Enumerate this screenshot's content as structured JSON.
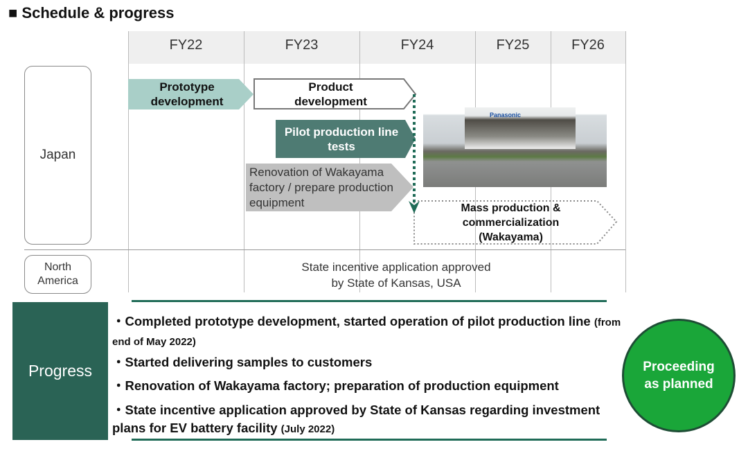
{
  "title": "Schedule & progress",
  "years": [
    "FY22",
    "FY23",
    "FY24",
    "FY25",
    "FY26"
  ],
  "rows": {
    "japan": "Japan",
    "north_america": "North\nAmerica"
  },
  "tasks": {
    "prototype": "Prototype development",
    "product": "Product development",
    "pilot": "Pilot production line tests",
    "renovation": "Renovation of Wakayama factory / prepare production equipment",
    "mass": "Mass production & commercialization (Wakayama)"
  },
  "na_text": "State incentive application approved\nby State of Kansas, USA",
  "photo_sign": "Panasonic",
  "progress": {
    "label": "Progress",
    "items": [
      {
        "text": "Completed prototype development, started operation of pilot production line",
        "note": "(from end of May 2022)"
      },
      {
        "text": "Started delivering samples to customers",
        "note": ""
      },
      {
        "text": "Renovation of Wakayama factory; preparation of production equipment",
        "note": ""
      },
      {
        "text": "State incentive application approved by State of Kansas regarding investment plans for EV battery facility",
        "note": "(July 2022)"
      }
    ],
    "status": "Proceeding as planned"
  },
  "colors": {
    "teal_dark": "#2a6355",
    "teal_light": "#a9cfc8",
    "pilot": "#4e7b73",
    "gray": "#bfbfbf",
    "status_green": "#1aa639"
  }
}
